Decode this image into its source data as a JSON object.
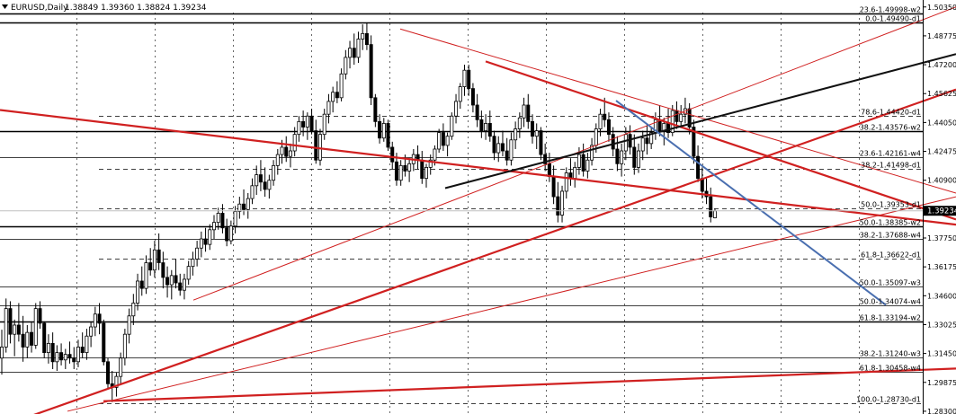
{
  "chart_data": {
    "type": "candlestick",
    "symbol": "EURUSD,Daily",
    "ohlc_text": "1.38849 1.39360 1.38824 1.39234",
    "current_price": "1.39234",
    "ylim": [
      1.2815,
      1.5073
    ],
    "y_ticks": [
      "1.50350",
      "1.48775",
      "1.47200",
      "1.45625",
      "1.44050",
      "1.42475",
      "1.40900",
      "1.39325",
      "1.37750",
      "1.36175",
      "1.34600",
      "1.33025",
      "1.31450",
      "1.29875",
      "1.28300"
    ],
    "fib_levels": [
      {
        "label": "23.6-1.49998-w2",
        "price": 1.49998,
        "style": "bold"
      },
      {
        "label": "0.0-1.49490-d1",
        "price": 1.4949,
        "style": "bold"
      },
      {
        "label": "78.6-1.44420-d1",
        "price": 1.4442,
        "style": "dashed"
      },
      {
        "label": "38.2-1.43576-w2",
        "price": 1.43576,
        "style": "bold"
      },
      {
        "label": "23.6-1.42161-w4",
        "price": 1.42161,
        "style": "thin"
      },
      {
        "label": "38.2-1.41498-d1",
        "price": 1.41498,
        "style": "dashed"
      },
      {
        "label": "50.0-1.39353-d1",
        "price": 1.39353,
        "style": "dashed"
      },
      {
        "label": "50.0-1.38385-w2",
        "price": 1.38385,
        "style": "bold"
      },
      {
        "label": "38.2-1.37688-w4",
        "price": 1.37688,
        "style": "thin"
      },
      {
        "label": "61.8-1.36622-d1",
        "price": 1.36622,
        "style": "dashed"
      },
      {
        "label": "50.0-1.35097-w3",
        "price": 1.35097,
        "style": "thin"
      },
      {
        "label": "50.0-1.34074-w4",
        "price": 1.34074,
        "style": "thin"
      },
      {
        "label": "61.8-1.33194-w2",
        "price": 1.33194,
        "style": "bold"
      },
      {
        "label": "38.2-1.31240-w3",
        "price": 1.3124,
        "style": "thin"
      },
      {
        "label": "61.8-1.30458-w4",
        "price": 1.30458,
        "style": "thin"
      },
      {
        "label": "100.0-1.28730-d1",
        "price": 1.2873,
        "style": "dashed"
      }
    ],
    "trendlines": [
      {
        "color": "#d02020",
        "p1": [
          0,
          1.4473
        ],
        "p2": [
          1063,
          1.3848
        ],
        "weight": 2.2
      },
      {
        "color": "#d02020",
        "p1": [
          0,
          1.2745
        ],
        "p2": [
          1063,
          1.4585
        ],
        "weight": 2.2
      },
      {
        "color": "#d02020",
        "p1": [
          115,
          1.2885
        ],
        "p2": [
          1063,
          1.3063
        ],
        "weight": 2.2
      },
      {
        "color": "#d02020",
        "p1": [
          540,
          1.4738
        ],
        "p2": [
          1063,
          1.3876
        ],
        "weight": 2.2
      },
      {
        "color": "#d02020",
        "p1": [
          445,
          1.4915
        ],
        "p2": [
          1063,
          1.402
        ],
        "weight": 1.0
      },
      {
        "color": "#d02020",
        "p1": [
          215,
          1.3436
        ],
        "p2": [
          1063,
          1.5035
        ],
        "weight": 1.0
      },
      {
        "color": "#d02020",
        "p1": [
          75,
          1.283
        ],
        "p2": [
          1063,
          1.4
        ],
        "weight": 1.0
      },
      {
        "color": "#111111",
        "p1": [
          495,
          1.4047
        ],
        "p2": [
          1063,
          1.4778
        ],
        "weight": 2.0
      },
      {
        "color": "#4a6fb0",
        "p1": [
          685,
          1.4524
        ],
        "p2": [
          985,
          1.341
        ],
        "weight": 2.0
      }
    ],
    "candles": [
      [
        1.312,
        1.3275,
        1.303,
        1.318
      ],
      [
        1.318,
        1.3445,
        1.315,
        1.339
      ],
      [
        1.339,
        1.343,
        1.32,
        1.325
      ],
      [
        1.325,
        1.333,
        1.313,
        1.33
      ],
      [
        1.33,
        1.342,
        1.321,
        1.325
      ],
      [
        1.325,
        1.335,
        1.31,
        1.318
      ],
      [
        1.318,
        1.33,
        1.312,
        1.326
      ],
      [
        1.326,
        1.332,
        1.315,
        1.319
      ],
      [
        1.319,
        1.342,
        1.317,
        1.339
      ],
      [
        1.339,
        1.343,
        1.328,
        1.331
      ],
      [
        1.331,
        1.332,
        1.312,
        1.315
      ],
      [
        1.315,
        1.325,
        1.309,
        1.32
      ],
      [
        1.32,
        1.326,
        1.306,
        1.31
      ],
      [
        1.31,
        1.319,
        1.305,
        1.315
      ],
      [
        1.315,
        1.32,
        1.308,
        1.311
      ],
      [
        1.311,
        1.317,
        1.306,
        1.314
      ],
      [
        1.314,
        1.321,
        1.309,
        1.312
      ],
      [
        1.312,
        1.318,
        1.306,
        1.31
      ],
      [
        1.31,
        1.322,
        1.307,
        1.318
      ],
      [
        1.318,
        1.326,
        1.312,
        1.315
      ],
      [
        1.315,
        1.328,
        1.311,
        1.324
      ],
      [
        1.324,
        1.332,
        1.318,
        1.329
      ],
      [
        1.329,
        1.34,
        1.324,
        1.336
      ],
      [
        1.336,
        1.342,
        1.325,
        1.331
      ],
      [
        1.331,
        1.333,
        1.308,
        1.31
      ],
      [
        1.31,
        1.312,
        1.295,
        1.298
      ],
      [
        1.298,
        1.305,
        1.288,
        1.296
      ],
      [
        1.296,
        1.304,
        1.291,
        1.302
      ],
      [
        1.302,
        1.315,
        1.298,
        1.312
      ],
      [
        1.312,
        1.328,
        1.308,
        1.325
      ],
      [
        1.325,
        1.339,
        1.32,
        1.335
      ],
      [
        1.335,
        1.347,
        1.33,
        1.342
      ],
      [
        1.342,
        1.358,
        1.338,
        1.354
      ],
      [
        1.354,
        1.362,
        1.346,
        1.35
      ],
      [
        1.35,
        1.368,
        1.347,
        1.364
      ],
      [
        1.364,
        1.372,
        1.357,
        1.36
      ],
      [
        1.36,
        1.376,
        1.356,
        1.371
      ],
      [
        1.371,
        1.38,
        1.36,
        1.364
      ],
      [
        1.364,
        1.37,
        1.35,
        1.356
      ],
      [
        1.356,
        1.362,
        1.345,
        1.352
      ],
      [
        1.352,
        1.36,
        1.344,
        1.357
      ],
      [
        1.357,
        1.366,
        1.35,
        1.353
      ],
      [
        1.353,
        1.358,
        1.346,
        1.349
      ],
      [
        1.349,
        1.358,
        1.344,
        1.355
      ],
      [
        1.355,
        1.365,
        1.352,
        1.362
      ],
      [
        1.362,
        1.37,
        1.357,
        1.366
      ],
      [
        1.366,
        1.376,
        1.362,
        1.372
      ],
      [
        1.372,
        1.381,
        1.367,
        1.377
      ],
      [
        1.377,
        1.383,
        1.37,
        1.374
      ],
      [
        1.374,
        1.385,
        1.371,
        1.382
      ],
      [
        1.382,
        1.39,
        1.377,
        1.386
      ],
      [
        1.386,
        1.394,
        1.382,
        1.391
      ],
      [
        1.391,
        1.396,
        1.38,
        1.383
      ],
      [
        1.383,
        1.388,
        1.373,
        1.376
      ],
      [
        1.376,
        1.387,
        1.374,
        1.384
      ],
      [
        1.384,
        1.395,
        1.38,
        1.392
      ],
      [
        1.392,
        1.4,
        1.388,
        1.396
      ],
      [
        1.396,
        1.404,
        1.39,
        1.393
      ],
      [
        1.393,
        1.402,
        1.388,
        1.399
      ],
      [
        1.399,
        1.41,
        1.396,
        1.406
      ],
      [
        1.406,
        1.417,
        1.401,
        1.412
      ],
      [
        1.412,
        1.42,
        1.403,
        1.408
      ],
      [
        1.408,
        1.416,
        1.4,
        1.404
      ],
      [
        1.404,
        1.412,
        1.399,
        1.409
      ],
      [
        1.409,
        1.42,
        1.406,
        1.417
      ],
      [
        1.417,
        1.426,
        1.412,
        1.423
      ],
      [
        1.423,
        1.431,
        1.418,
        1.427
      ],
      [
        1.427,
        1.433,
        1.419,
        1.422
      ],
      [
        1.422,
        1.429,
        1.416,
        1.425
      ],
      [
        1.425,
        1.438,
        1.422,
        1.434
      ],
      [
        1.434,
        1.444,
        1.43,
        1.441
      ],
      [
        1.441,
        1.447,
        1.433,
        1.438
      ],
      [
        1.438,
        1.446,
        1.431,
        1.444
      ],
      [
        1.444,
        1.448,
        1.434,
        1.436
      ],
      [
        1.436,
        1.442,
        1.418,
        1.42
      ],
      [
        1.42,
        1.437,
        1.417,
        1.434
      ],
      [
        1.434,
        1.448,
        1.431,
        1.445
      ],
      [
        1.445,
        1.456,
        1.44,
        1.452
      ],
      [
        1.452,
        1.46,
        1.446,
        1.457
      ],
      [
        1.457,
        1.463,
        1.451,
        1.454
      ],
      [
        1.454,
        1.47,
        1.452,
        1.467
      ],
      [
        1.467,
        1.48,
        1.464,
        1.476
      ],
      [
        1.476,
        1.485,
        1.47,
        1.481
      ],
      [
        1.481,
        1.489,
        1.472,
        1.476
      ],
      [
        1.476,
        1.49,
        1.473,
        1.486
      ],
      [
        1.486,
        1.494,
        1.48,
        1.489
      ],
      [
        1.489,
        1.495,
        1.48,
        1.483
      ],
      [
        1.483,
        1.488,
        1.45,
        1.454
      ],
      [
        1.454,
        1.456,
        1.438,
        1.441
      ],
      [
        1.441,
        1.445,
        1.429,
        1.432
      ],
      [
        1.432,
        1.443,
        1.43,
        1.44
      ],
      [
        1.44,
        1.442,
        1.425,
        1.427
      ],
      [
        1.427,
        1.43,
        1.415,
        1.419
      ],
      [
        1.419,
        1.424,
        1.406,
        1.409
      ],
      [
        1.409,
        1.42,
        1.406,
        1.417
      ],
      [
        1.417,
        1.423,
        1.411,
        1.414
      ],
      [
        1.414,
        1.421,
        1.408,
        1.418
      ],
      [
        1.418,
        1.426,
        1.414,
        1.423
      ],
      [
        1.423,
        1.428,
        1.415,
        1.42
      ],
      [
        1.42,
        1.425,
        1.407,
        1.41
      ],
      [
        1.41,
        1.418,
        1.405,
        1.416
      ],
      [
        1.416,
        1.423,
        1.412,
        1.42
      ],
      [
        1.42,
        1.428,
        1.417,
        1.426
      ],
      [
        1.426,
        1.437,
        1.424,
        1.435
      ],
      [
        1.435,
        1.44,
        1.425,
        1.428
      ],
      [
        1.428,
        1.435,
        1.422,
        1.433
      ],
      [
        1.433,
        1.446,
        1.431,
        1.444
      ],
      [
        1.444,
        1.456,
        1.44,
        1.452
      ],
      [
        1.452,
        1.462,
        1.448,
        1.46
      ],
      [
        1.46,
        1.472,
        1.455,
        1.469
      ],
      [
        1.469,
        1.472,
        1.455,
        1.459
      ],
      [
        1.459,
        1.462,
        1.446,
        1.45
      ],
      [
        1.45,
        1.456,
        1.438,
        1.442
      ],
      [
        1.442,
        1.447,
        1.432,
        1.436
      ],
      [
        1.436,
        1.445,
        1.431,
        1.44
      ],
      [
        1.44,
        1.447,
        1.43,
        1.433
      ],
      [
        1.433,
        1.436,
        1.42,
        1.424
      ],
      [
        1.424,
        1.433,
        1.419,
        1.429
      ],
      [
        1.429,
        1.436,
        1.422,
        1.425
      ],
      [
        1.425,
        1.432,
        1.417,
        1.42
      ],
      [
        1.42,
        1.435,
        1.417,
        1.431
      ],
      [
        1.431,
        1.441,
        1.426,
        1.437
      ],
      [
        1.437,
        1.446,
        1.432,
        1.443
      ],
      [
        1.443,
        1.454,
        1.438,
        1.45
      ],
      [
        1.45,
        1.456,
        1.437,
        1.441
      ],
      [
        1.441,
        1.445,
        1.429,
        1.433
      ],
      [
        1.433,
        1.44,
        1.426,
        1.436
      ],
      [
        1.436,
        1.438,
        1.42,
        1.423
      ],
      [
        1.423,
        1.429,
        1.414,
        1.418
      ],
      [
        1.418,
        1.424,
        1.408,
        1.411
      ],
      [
        1.411,
        1.417,
        1.396,
        1.4
      ],
      [
        1.4,
        1.408,
        1.386,
        1.39
      ],
      [
        1.39,
        1.406,
        1.386,
        1.403
      ],
      [
        1.403,
        1.416,
        1.399,
        1.413
      ],
      [
        1.413,
        1.421,
        1.406,
        1.41
      ],
      [
        1.41,
        1.419,
        1.405,
        1.416
      ],
      [
        1.416,
        1.427,
        1.412,
        1.423
      ],
      [
        1.423,
        1.429,
        1.411,
        1.414
      ],
      [
        1.414,
        1.424,
        1.41,
        1.42
      ],
      [
        1.42,
        1.432,
        1.417,
        1.428
      ],
      [
        1.428,
        1.44,
        1.424,
        1.437
      ],
      [
        1.437,
        1.448,
        1.433,
        1.445
      ],
      [
        1.445,
        1.454,
        1.438,
        1.442
      ],
      [
        1.442,
        1.446,
        1.43,
        1.434
      ],
      [
        1.434,
        1.438,
        1.422,
        1.426
      ],
      [
        1.426,
        1.433,
        1.414,
        1.418
      ],
      [
        1.418,
        1.429,
        1.411,
        1.425
      ],
      [
        1.425,
        1.438,
        1.42,
        1.434
      ],
      [
        1.434,
        1.439,
        1.423,
        1.427
      ],
      [
        1.427,
        1.434,
        1.412,
        1.416
      ],
      [
        1.416,
        1.429,
        1.413,
        1.425
      ],
      [
        1.425,
        1.436,
        1.42,
        1.432
      ],
      [
        1.432,
        1.44,
        1.423,
        1.429
      ],
      [
        1.429,
        1.438,
        1.426,
        1.435
      ],
      [
        1.435,
        1.446,
        1.431,
        1.442
      ],
      [
        1.442,
        1.45,
        1.433,
        1.436
      ],
      [
        1.436,
        1.443,
        1.428,
        1.44
      ],
      [
        1.44,
        1.448,
        1.432,
        1.435
      ],
      [
        1.435,
        1.45,
        1.433,
        1.447
      ],
      [
        1.447,
        1.452,
        1.437,
        1.441
      ],
      [
        1.441,
        1.45,
        1.438,
        1.445
      ],
      [
        1.445,
        1.454,
        1.44,
        1.448
      ],
      [
        1.448,
        1.451,
        1.434,
        1.438
      ],
      [
        1.438,
        1.442,
        1.418,
        1.422
      ],
      [
        1.422,
        1.428,
        1.408,
        1.41
      ],
      [
        1.41,
        1.416,
        1.399,
        1.403
      ],
      [
        1.403,
        1.41,
        1.396,
        1.4
      ],
      [
        1.4,
        1.405,
        1.386,
        1.389
      ],
      [
        1.3885,
        1.3936,
        1.3882,
        1.3923
      ]
    ]
  }
}
